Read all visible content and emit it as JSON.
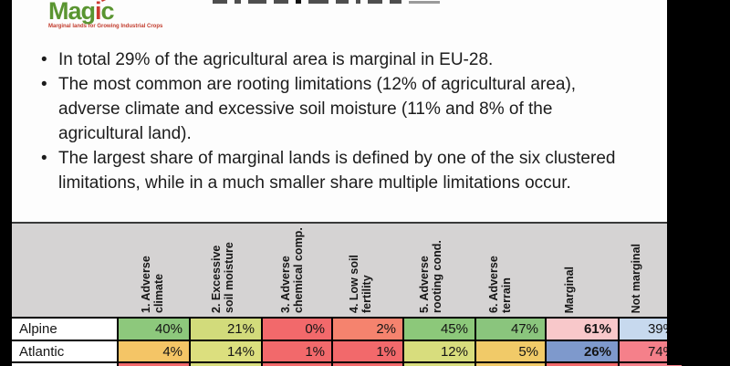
{
  "logo": {
    "word_part1": "Mag",
    "word_part2": "i",
    "word_part3": "c",
    "tagline": "Marginal lands for Growing Industrial Crops",
    "color_green": "#5a9531",
    "color_red": "#cc3a2f"
  },
  "bullets": [
    "In total 29% of the agricultural area is marginal in EU-28.",
    "The most common are rooting limitations (12% of agricultural area), adverse climate and excessive soil moisture (11% and 8% of the agricultural land).",
    "The largest share of marginal lands is defined by one of the six clustered limitations, while in a much smaller share multiple limitations occur."
  ],
  "table": {
    "header_bg": "#d5d3d3",
    "columns": [
      "1. Adverse climate",
      "2. Excessive soil moisture",
      "3. Adverse chemical comp.",
      "4. Low soil fertility",
      "5. Adverse rooting cond.",
      "6. Adverse terrain",
      "Marginal",
      "Not marginal"
    ],
    "bold_column_index": 6,
    "rows": [
      {
        "label": "Alpine",
        "values": [
          "40%",
          "21%",
          "0%",
          "2%",
          "45%",
          "47%",
          "61%",
          "39%"
        ],
        "colors": [
          "#8dc87c",
          "#d2db7b",
          "#f2696b",
          "#f5836e",
          "#8cc87a",
          "#8ac57d",
          "#f8c8ca",
          "#c7d9ee"
        ]
      },
      {
        "label": "Atlantic",
        "values": [
          "4%",
          "14%",
          "1%",
          "1%",
          "12%",
          "5%",
          "26%",
          "74%"
        ],
        "colors": [
          "#f4c566",
          "#dcdf7e",
          "#f2696b",
          "#f2696b",
          "#d8dd7d",
          "#f1ca68",
          "#7e99cc",
          "#f5808a"
        ]
      },
      {
        "label": "",
        "values": [
          "",
          "",
          "",
          "",
          "",
          "",
          "",
          ""
        ],
        "colors": [
          "#f2696b",
          "#d8dd7d",
          "#f2696b",
          "#f2696b",
          "#d8dd7d",
          "#f1ca68",
          "#f2696b",
          "#f5808a"
        ]
      }
    ]
  },
  "chart_data": {
    "type": "table",
    "title": "",
    "categories": [
      "1. Adverse climate",
      "2. Excessive soil moisture",
      "3. Adverse chemical comp.",
      "4. Low soil fertility",
      "5. Adverse rooting cond.",
      "6. Adverse terrain",
      "Marginal",
      "Not marginal"
    ],
    "series": [
      {
        "name": "Alpine",
        "values": [
          40,
          21,
          0,
          2,
          45,
          47,
          61,
          39
        ]
      },
      {
        "name": "Atlantic",
        "values": [
          4,
          14,
          1,
          1,
          12,
          5,
          26,
          74
        ]
      }
    ],
    "unit": "%"
  }
}
